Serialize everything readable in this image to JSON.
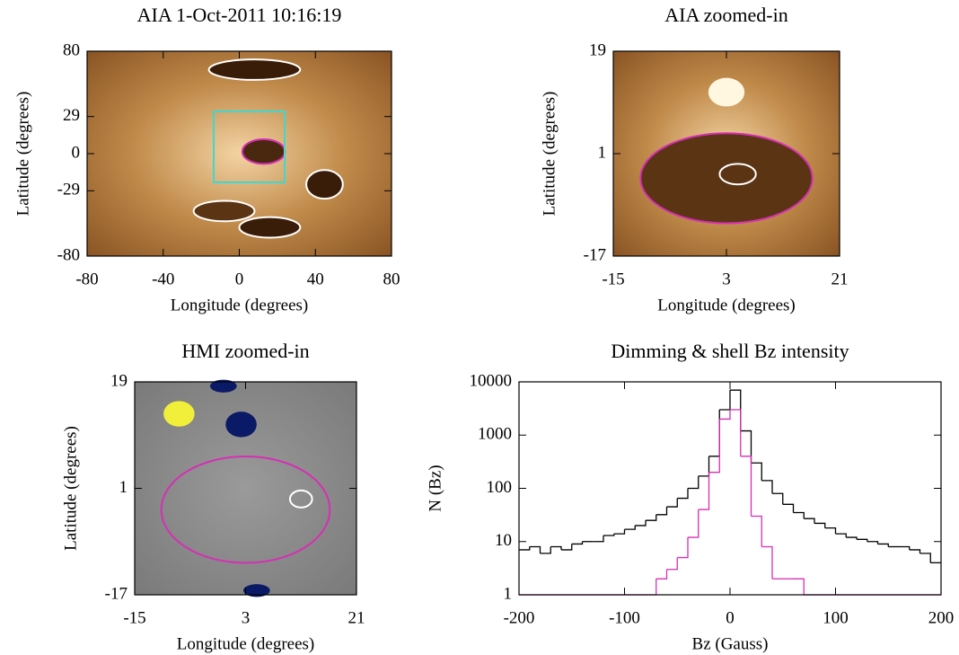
{
  "chart_data": [
    {
      "type": "image",
      "title": "AIA   1-Oct-2011 10:16:19",
      "xlabel": "Longitude (degrees)",
      "ylabel": "Latitude (degrees)",
      "xlim": [
        -80,
        80
      ],
      "xticks": [
        -80,
        -40,
        0,
        40,
        80
      ],
      "ylim": [
        -80,
        80
      ],
      "yticks": [
        -80,
        -29,
        0,
        29,
        80
      ],
      "colormap": "brown"
    },
    {
      "type": "image",
      "title": "AIA zoomed-in",
      "xlabel": "Longitude (degrees)",
      "ylabel": "Latitude (degrees)",
      "xlim": [
        -15,
        21
      ],
      "xticks": [
        -15,
        3,
        21
      ],
      "ylim": [
        -17,
        19
      ],
      "yticks": [
        -17,
        1,
        19
      ],
      "colormap": "brown"
    },
    {
      "type": "image",
      "title": "HMI zoomed-in",
      "xlabel": "Longitude (degrees)",
      "ylabel": "Latitude (degrees)",
      "xlim": [
        -15,
        21
      ],
      "xticks": [
        -15,
        3,
        21
      ],
      "ylim": [
        -17,
        19
      ],
      "yticks": [
        -17,
        1,
        19
      ],
      "colormap": "gray"
    },
    {
      "type": "histogram",
      "title": "Dimming & shell Bz intensity",
      "xlabel": "Bz (Gauss)",
      "ylabel": "N (Bz)",
      "xlim": [
        -200,
        200
      ],
      "xticks": [
        -200,
        -100,
        0,
        100,
        200
      ],
      "ylim": [
        1,
        10000
      ],
      "yticks": [
        1,
        10,
        100,
        1000,
        10000
      ],
      "ylog": true,
      "bins": [
        -200,
        -190,
        -180,
        -170,
        -160,
        -150,
        -140,
        -130,
        -120,
        -110,
        -100,
        -90,
        -80,
        -70,
        -60,
        -50,
        -40,
        -30,
        -20,
        -10,
        0,
        10,
        20,
        30,
        40,
        50,
        60,
        70,
        80,
        90,
        100,
        110,
        120,
        130,
        140,
        150,
        160,
        170,
        180,
        190,
        200
      ],
      "series": [
        {
          "color": "#000000",
          "values": [
            7,
            8,
            6,
            8,
            7,
            9,
            10,
            10,
            13,
            14,
            17,
            20,
            25,
            32,
            45,
            65,
            100,
            170,
            400,
            3000,
            7000,
            1200,
            300,
            140,
            80,
            50,
            35,
            27,
            22,
            18,
            14,
            12,
            11,
            10,
            9,
            8,
            8,
            7,
            6,
            4
          ]
        },
        {
          "color": "#d62fb4",
          "values": [
            1,
            1,
            1,
            1,
            1,
            1,
            1,
            1,
            1,
            1,
            1,
            1,
            1,
            2,
            3,
            5,
            12,
            40,
            200,
            2000,
            3000,
            400,
            30,
            8,
            2,
            2,
            2,
            1,
            1,
            1,
            1,
            1,
            1,
            1,
            1,
            1,
            1,
            1,
            1,
            1
          ]
        }
      ]
    }
  ]
}
